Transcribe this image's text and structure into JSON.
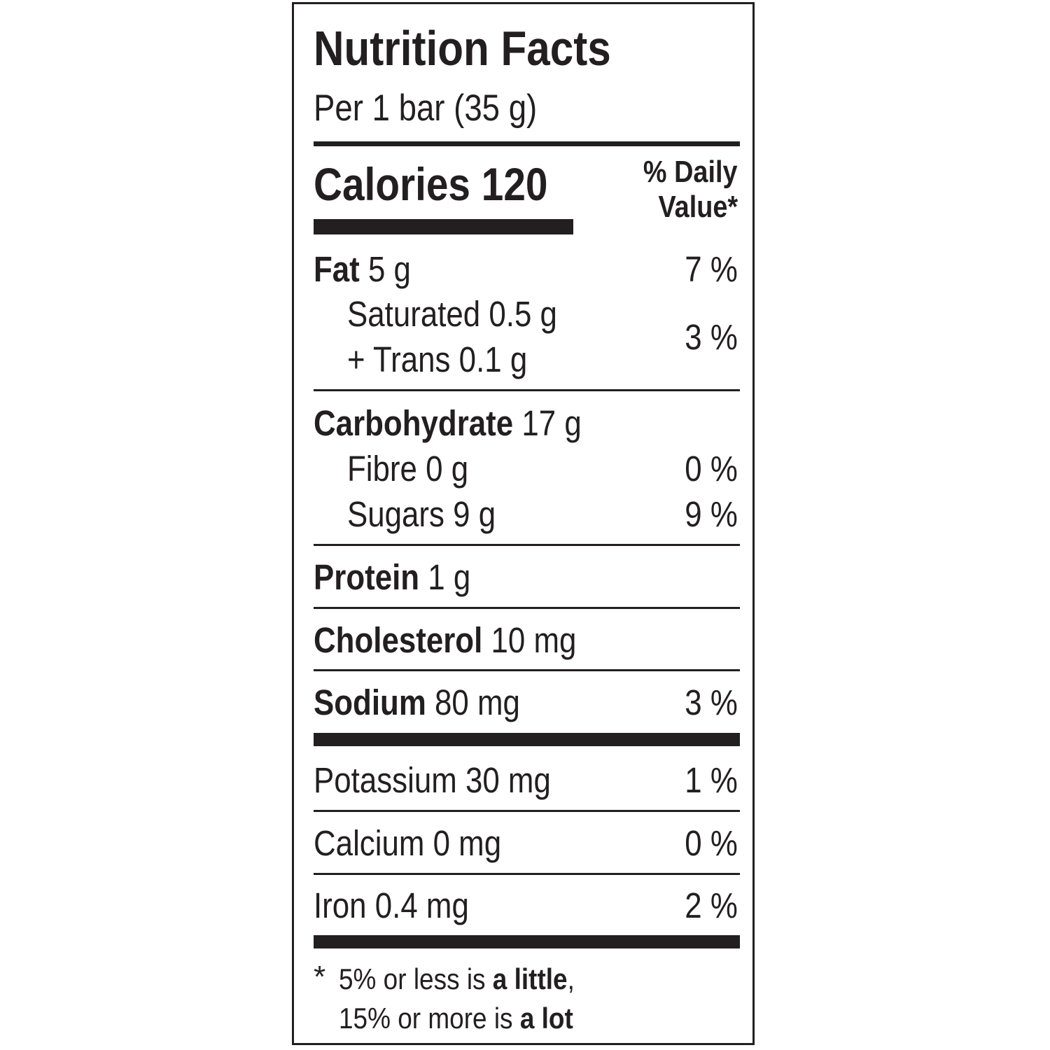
{
  "title": "Nutrition Facts",
  "serving": "Per 1 bar (35 g)",
  "calories_label": "Calories",
  "calories_value": "120",
  "dv_header_line1": "% Daily",
  "dv_header_line2": "Value*",
  "rows": {
    "fat": {
      "label": "Fat",
      "amount": "5 g",
      "dv": "7 %"
    },
    "saturated": {
      "label": "Saturated 0.5 g"
    },
    "trans": {
      "label": "+ Trans 0.1 g"
    },
    "sat_trans_dv": "3 %",
    "carbohydrate": {
      "label": "Carbohydrate",
      "amount": "17 g"
    },
    "fibre": {
      "label": "Fibre 0 g",
      "dv": "0 %"
    },
    "sugars": {
      "label": "Sugars 9 g",
      "dv": "9 %"
    },
    "protein": {
      "label": "Protein",
      "amount": "1 g"
    },
    "cholesterol": {
      "label": "Cholesterol",
      "amount": "10 mg"
    },
    "sodium": {
      "label": "Sodium",
      "amount": "80 mg",
      "dv": "3 %"
    },
    "potassium": {
      "label": "Potassium 30 mg",
      "dv": "1 %"
    },
    "calcium": {
      "label": "Calcium 0 mg",
      "dv": "0 %"
    },
    "iron": {
      "label": "Iron 0.4 mg",
      "dv": "2 %"
    }
  },
  "footnote": {
    "asterisk": "*",
    "line1_a": "5% or less is ",
    "line1_b": "a little",
    "line1_c": ",",
    "line2_a": "15% or more is ",
    "line2_b": "a lot"
  }
}
